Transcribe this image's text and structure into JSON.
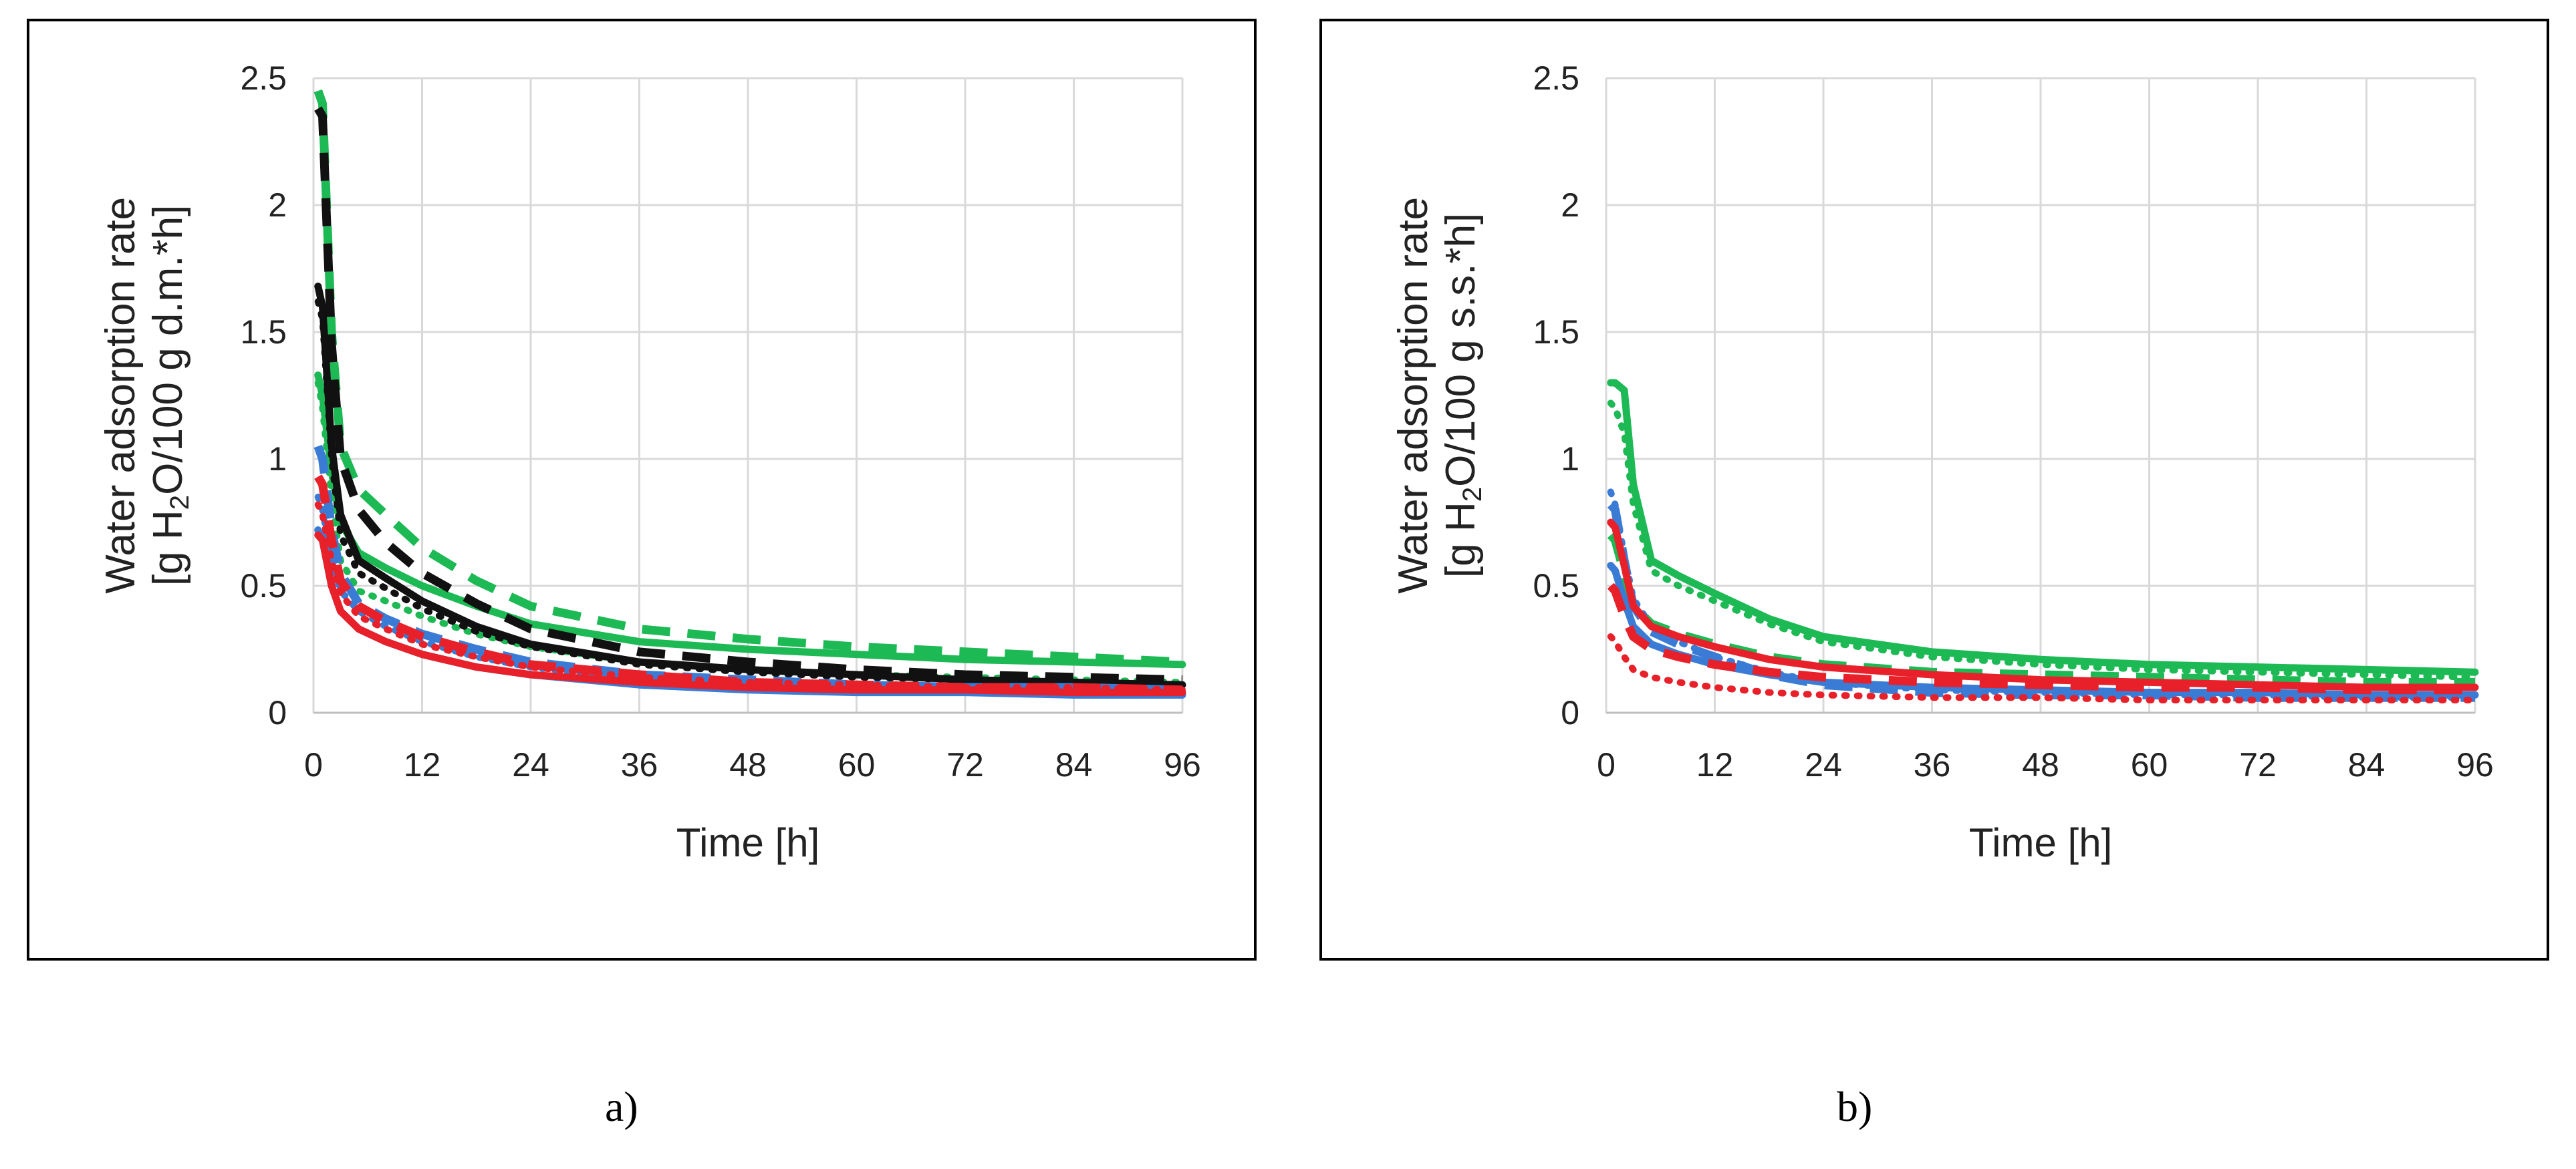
{
  "panels": [
    {
      "id": "a",
      "caption": "a)",
      "ylabel_line1": "Water adsorption rate",
      "ylabel_line2_pre": "[g H",
      "ylabel_line2_sub": "2",
      "ylabel_line2_post": "O/100 g d.m.*h]",
      "xlabel": "Time [h]"
    },
    {
      "id": "b",
      "caption": "b)",
      "ylabel_line1": "Water adsorption rate",
      "ylabel_line2_pre": "[g H",
      "ylabel_line2_sub": "2",
      "ylabel_line2_post": "O/100 g s.s.*h]",
      "xlabel": "Time [h]"
    }
  ],
  "chart_data": [
    {
      "type": "line",
      "panel": "a",
      "title": "",
      "xlabel": "Time [h]",
      "ylabel": "Water adsorption rate [g H2O/100 g d.m.*h]",
      "xlim": [
        0,
        96
      ],
      "ylim": [
        0,
        2.5
      ],
      "xticks": [
        "0",
        "12",
        "24",
        "36",
        "48",
        "60",
        "72",
        "84",
        "96"
      ],
      "yticks": [
        "0",
        "0.5",
        "1",
        "1.5",
        "2",
        "2.5"
      ],
      "grid": true,
      "series": [
        {
          "name": "green dashed",
          "color": "#1db954",
          "dash": "dashed",
          "x": [
            0.5,
            1,
            2,
            3,
            5,
            8,
            12,
            18,
            24,
            36,
            48,
            60,
            72,
            84,
            96
          ],
          "y": [
            2.45,
            2.4,
            1.5,
            1.05,
            0.88,
            0.78,
            0.65,
            0.52,
            0.42,
            0.33,
            0.29,
            0.26,
            0.24,
            0.22,
            0.2
          ]
        },
        {
          "name": "green solid",
          "color": "#1db954",
          "dash": "solid",
          "x": [
            0.5,
            1,
            2,
            3,
            5,
            8,
            12,
            18,
            24,
            36,
            48,
            60,
            72,
            84,
            96
          ],
          "y": [
            1.33,
            1.25,
            0.95,
            0.75,
            0.63,
            0.57,
            0.5,
            0.42,
            0.35,
            0.28,
            0.25,
            0.23,
            0.21,
            0.2,
            0.19
          ]
        },
        {
          "name": "green dotted",
          "color": "#1db954",
          "dash": "dotted",
          "x": [
            0.5,
            1,
            2,
            3,
            5,
            8,
            12,
            18,
            24,
            36,
            48,
            60,
            72,
            84,
            96
          ],
          "y": [
            1.3,
            1.2,
            0.85,
            0.6,
            0.48,
            0.44,
            0.38,
            0.31,
            0.26,
            0.2,
            0.17,
            0.15,
            0.14,
            0.13,
            0.12
          ]
        },
        {
          "name": "black dashed",
          "color": "#111111",
          "dash": "dashed",
          "x": [
            0.5,
            1,
            2,
            3,
            5,
            8,
            12,
            18,
            24,
            36,
            48,
            60,
            72,
            84,
            96
          ],
          "y": [
            2.38,
            2.35,
            1.45,
            1.0,
            0.8,
            0.67,
            0.55,
            0.43,
            0.33,
            0.24,
            0.2,
            0.17,
            0.15,
            0.14,
            0.13
          ]
        },
        {
          "name": "black solid",
          "color": "#111111",
          "dash": "solid",
          "x": [
            0.5,
            1,
            2,
            3,
            5,
            8,
            12,
            18,
            24,
            36,
            48,
            60,
            72,
            84,
            96
          ],
          "y": [
            1.68,
            1.6,
            1.05,
            0.78,
            0.6,
            0.53,
            0.44,
            0.34,
            0.27,
            0.2,
            0.17,
            0.15,
            0.13,
            0.12,
            0.11
          ]
        },
        {
          "name": "black dotted",
          "color": "#111111",
          "dash": "dotted",
          "x": [
            0.5,
            1,
            2,
            3,
            5,
            8,
            12,
            18,
            24,
            36,
            48,
            60,
            72,
            84,
            96
          ],
          "y": [
            1.62,
            1.55,
            1.0,
            0.7,
            0.55,
            0.49,
            0.41,
            0.32,
            0.26,
            0.19,
            0.16,
            0.14,
            0.13,
            0.12,
            0.11
          ]
        },
        {
          "name": "blue dashed",
          "color": "#3a7bd5",
          "dash": "dashed",
          "x": [
            0.5,
            1,
            2,
            3,
            5,
            8,
            12,
            18,
            24,
            36,
            48,
            60,
            72,
            84,
            96
          ],
          "y": [
            1.05,
            1.0,
            0.72,
            0.55,
            0.43,
            0.37,
            0.31,
            0.25,
            0.2,
            0.15,
            0.13,
            0.11,
            0.1,
            0.1,
            0.09
          ]
        },
        {
          "name": "blue dotted",
          "color": "#3a7bd5",
          "dash": "dotted",
          "x": [
            0.5,
            1,
            2,
            3,
            5,
            8,
            12,
            18,
            24,
            36,
            48,
            60,
            72,
            84,
            96
          ],
          "y": [
            0.85,
            0.8,
            0.6,
            0.48,
            0.4,
            0.34,
            0.28,
            0.22,
            0.18,
            0.13,
            0.11,
            0.1,
            0.09,
            0.09,
            0.08
          ]
        },
        {
          "name": "blue solid",
          "color": "#3a7bd5",
          "dash": "solid",
          "x": [
            0.5,
            1,
            2,
            3,
            5,
            8,
            12,
            18,
            24,
            36,
            48,
            60,
            72,
            84,
            96
          ],
          "y": [
            0.72,
            0.68,
            0.5,
            0.4,
            0.33,
            0.28,
            0.23,
            0.18,
            0.15,
            0.11,
            0.09,
            0.08,
            0.08,
            0.07,
            0.07
          ]
        },
        {
          "name": "red dashed",
          "color": "#e8202a",
          "dash": "dashed",
          "x": [
            0.5,
            1,
            2,
            3,
            5,
            8,
            12,
            18,
            24,
            36,
            48,
            60,
            72,
            84,
            96
          ],
          "y": [
            0.93,
            0.9,
            0.68,
            0.52,
            0.42,
            0.36,
            0.3,
            0.24,
            0.19,
            0.15,
            0.12,
            0.11,
            0.1,
            0.1,
            0.09
          ]
        },
        {
          "name": "red dotted",
          "color": "#e8202a",
          "dash": "dotted",
          "x": [
            0.5,
            1,
            2,
            3,
            5,
            8,
            12,
            18,
            24,
            36,
            48,
            60,
            72,
            84,
            96
          ],
          "y": [
            0.82,
            0.78,
            0.6,
            0.47,
            0.38,
            0.33,
            0.27,
            0.22,
            0.18,
            0.14,
            0.12,
            0.11,
            0.1,
            0.1,
            0.09
          ]
        },
        {
          "name": "red solid",
          "color": "#e8202a",
          "dash": "solid",
          "x": [
            0.5,
            1,
            2,
            3,
            5,
            8,
            12,
            18,
            24,
            36,
            48,
            60,
            72,
            84,
            96
          ],
          "y": [
            0.7,
            0.68,
            0.5,
            0.4,
            0.33,
            0.28,
            0.23,
            0.18,
            0.15,
            0.12,
            0.1,
            0.09,
            0.09,
            0.08,
            0.08
          ]
        }
      ]
    },
    {
      "type": "line",
      "panel": "b",
      "title": "",
      "xlabel": "Time [h]",
      "ylabel": "Water adsorption rate [g H2O/100 g s.s.*h]",
      "xlim": [
        0,
        96
      ],
      "ylim": [
        0,
        2.5
      ],
      "xticks": [
        "0",
        "12",
        "24",
        "36",
        "48",
        "60",
        "72",
        "84",
        "96"
      ],
      "yticks": [
        "0",
        "0.5",
        "1",
        "1.5",
        "2",
        "2.5"
      ],
      "grid": true,
      "series": [
        {
          "name": "green solid",
          "color": "#1db954",
          "dash": "solid",
          "x": [
            0.5,
            1,
            2,
            3,
            5,
            8,
            12,
            18,
            24,
            36,
            48,
            60,
            72,
            84,
            96
          ],
          "y": [
            1.3,
            1.3,
            1.27,
            0.9,
            0.6,
            0.54,
            0.47,
            0.37,
            0.3,
            0.24,
            0.21,
            0.19,
            0.18,
            0.17,
            0.16
          ]
        },
        {
          "name": "green dotted",
          "color": "#1db954",
          "dash": "dotted",
          "x": [
            0.5,
            1,
            2,
            3,
            5,
            8,
            12,
            18,
            24,
            36,
            48,
            60,
            72,
            84,
            96
          ],
          "y": [
            1.22,
            1.2,
            1.1,
            0.82,
            0.56,
            0.5,
            0.44,
            0.35,
            0.28,
            0.22,
            0.19,
            0.17,
            0.16,
            0.15,
            0.14
          ]
        },
        {
          "name": "green dashed",
          "color": "#1db954",
          "dash": "dashed",
          "x": [
            0.5,
            1,
            2,
            3,
            5,
            8,
            12,
            18,
            24,
            36,
            48,
            60,
            72,
            84,
            96
          ],
          "y": [
            0.7,
            0.68,
            0.55,
            0.42,
            0.35,
            0.31,
            0.27,
            0.22,
            0.19,
            0.16,
            0.15,
            0.14,
            0.13,
            0.12,
            0.12
          ]
        },
        {
          "name": "blue dashed",
          "color": "#3a7bd5",
          "dash": "dashed",
          "x": [
            0.5,
            1,
            2,
            3,
            5,
            8,
            12,
            18,
            24,
            36,
            48,
            60,
            72,
            84,
            96
          ],
          "y": [
            0.82,
            0.8,
            0.6,
            0.42,
            0.32,
            0.27,
            0.22,
            0.15,
            0.11,
            0.08,
            0.07,
            0.07,
            0.06,
            0.06,
            0.06
          ]
        },
        {
          "name": "blue dotted",
          "color": "#3a7bd5",
          "dash": "dotted",
          "x": [
            0.5,
            1,
            2,
            3,
            5,
            8,
            12,
            18,
            24,
            36,
            48,
            60,
            72,
            84,
            96
          ],
          "y": [
            0.87,
            0.82,
            0.62,
            0.45,
            0.34,
            0.28,
            0.22,
            0.16,
            0.12,
            0.09,
            0.08,
            0.07,
            0.07,
            0.06,
            0.06
          ]
        },
        {
          "name": "blue solid",
          "color": "#3a7bd5",
          "dash": "solid",
          "x": [
            0.5,
            1,
            2,
            3,
            5,
            8,
            12,
            18,
            24,
            36,
            48,
            60,
            72,
            84,
            96
          ],
          "y": [
            0.58,
            0.56,
            0.44,
            0.34,
            0.27,
            0.23,
            0.19,
            0.15,
            0.12,
            0.1,
            0.09,
            0.08,
            0.08,
            0.07,
            0.07
          ]
        },
        {
          "name": "red solid",
          "color": "#e8202a",
          "dash": "solid",
          "x": [
            0.5,
            1,
            2,
            3,
            5,
            8,
            12,
            18,
            24,
            36,
            48,
            60,
            72,
            84,
            96
          ],
          "y": [
            0.75,
            0.73,
            0.58,
            0.42,
            0.34,
            0.3,
            0.26,
            0.21,
            0.18,
            0.15,
            0.13,
            0.12,
            0.11,
            0.1,
            0.1
          ]
        },
        {
          "name": "red dashed",
          "color": "#e8202a",
          "dash": "dashed",
          "x": [
            0.5,
            1,
            2,
            3,
            5,
            8,
            12,
            18,
            24,
            36,
            48,
            60,
            72,
            84,
            96
          ],
          "y": [
            0.5,
            0.48,
            0.38,
            0.3,
            0.25,
            0.22,
            0.19,
            0.16,
            0.14,
            0.12,
            0.11,
            0.1,
            0.1,
            0.09,
            0.09
          ]
        },
        {
          "name": "red dotted",
          "color": "#e8202a",
          "dash": "dotted",
          "x": [
            0.5,
            1,
            2,
            3,
            5,
            8,
            12,
            18,
            24,
            36,
            48,
            60,
            72,
            84,
            96
          ],
          "y": [
            0.3,
            0.28,
            0.22,
            0.17,
            0.14,
            0.12,
            0.1,
            0.08,
            0.07,
            0.06,
            0.06,
            0.05,
            0.05,
            0.05,
            0.05
          ]
        }
      ]
    }
  ]
}
